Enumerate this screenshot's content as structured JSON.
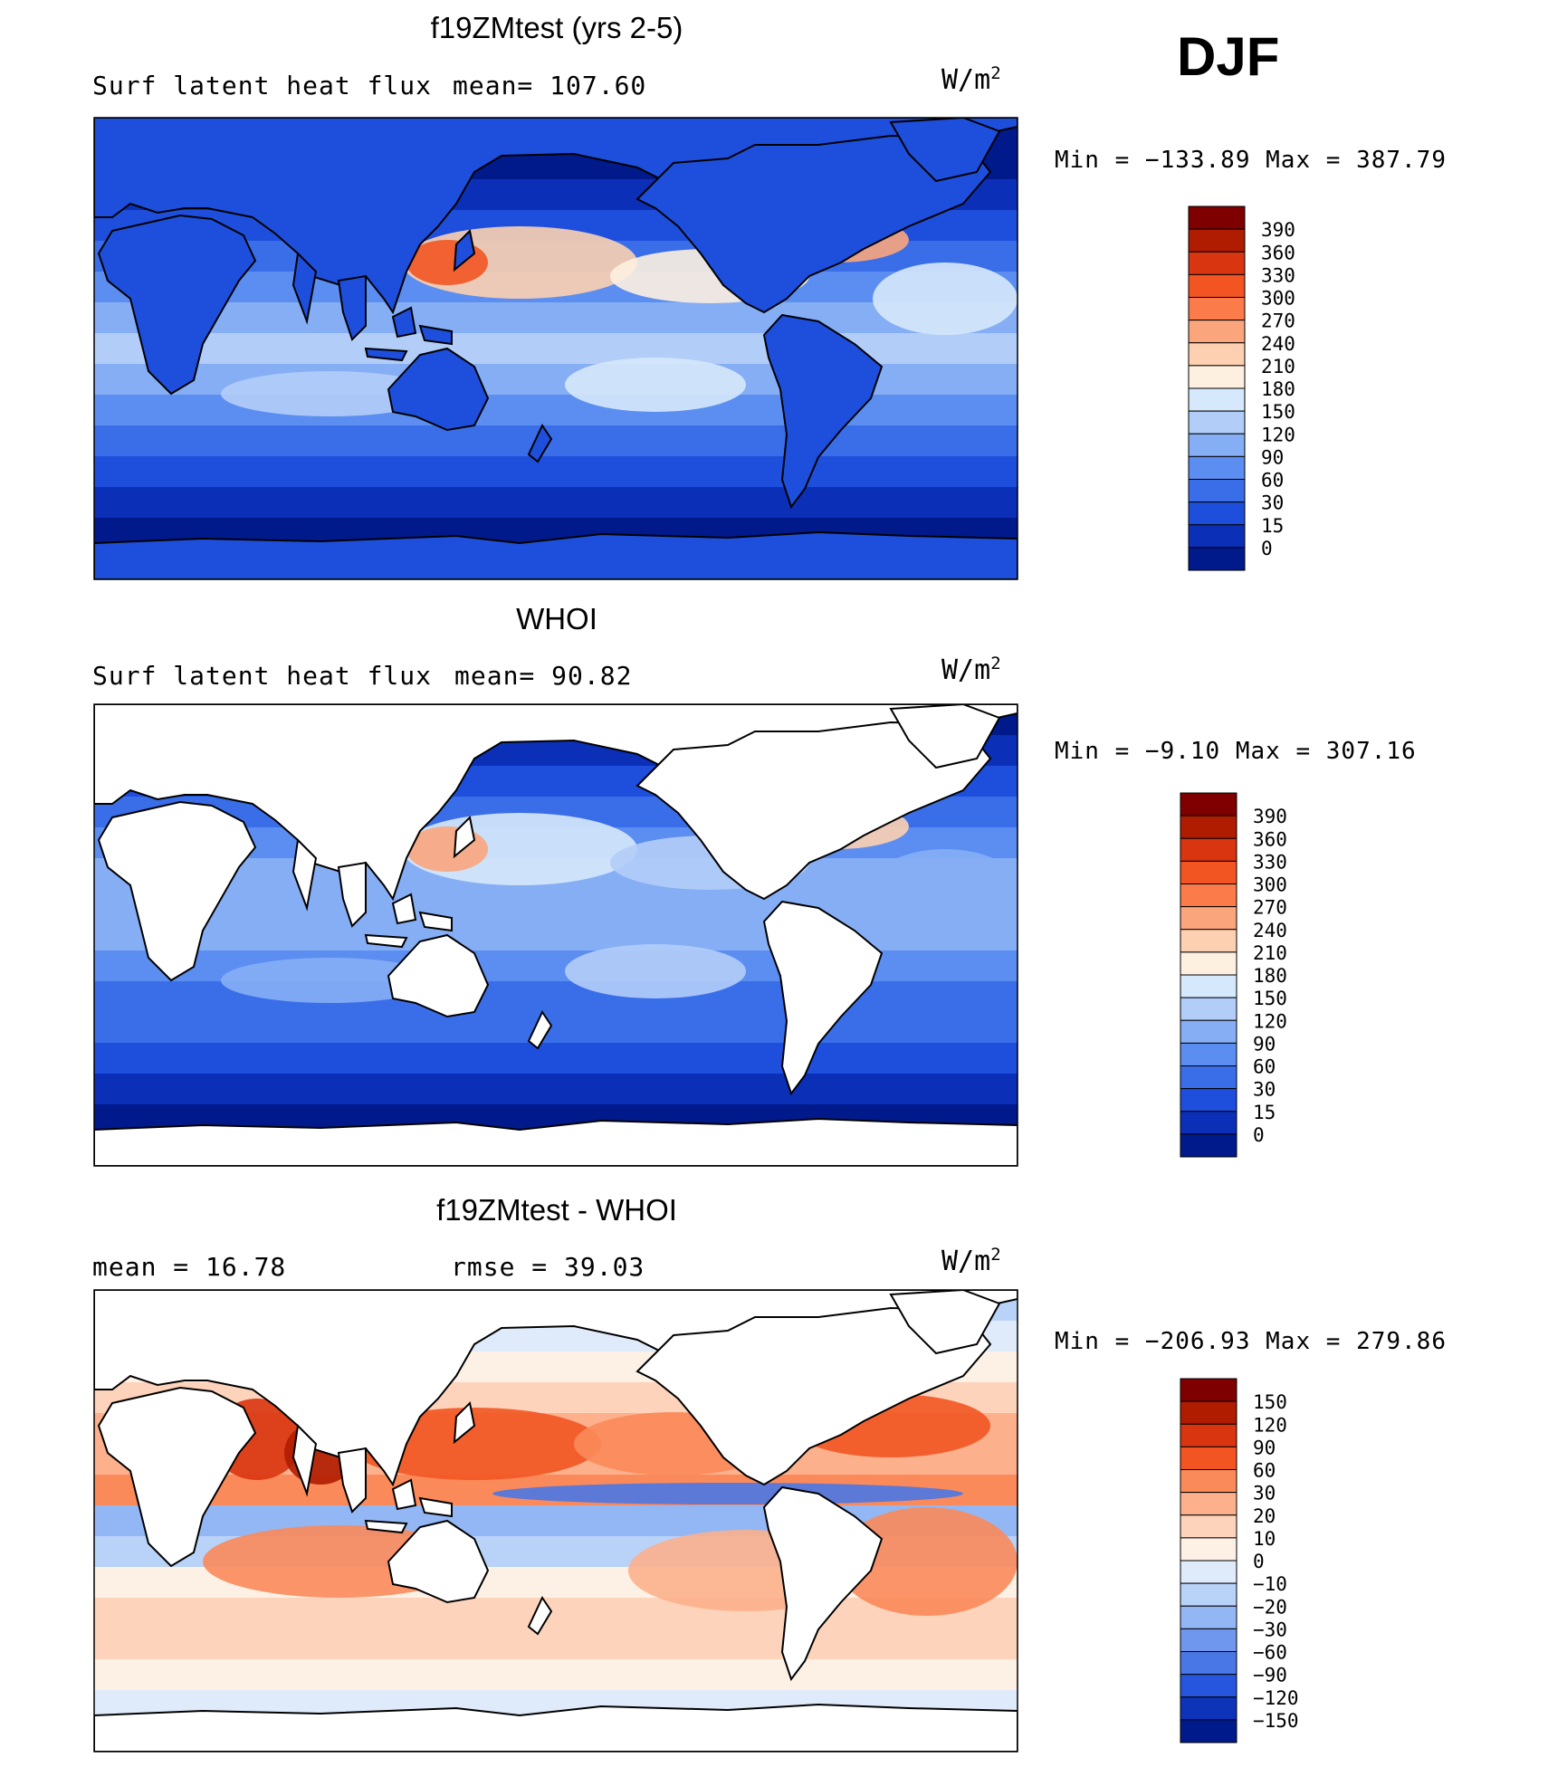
{
  "season": "DJF",
  "units_base": "W/m",
  "units_exp": "2",
  "panels": [
    {
      "title": "f19ZMtest (yrs 2-5)",
      "left_label": "Surf  latent  heat  flux",
      "mid_label": "mean=  107.60",
      "minmax": "Min  =  −133.89  Max  =  387.79",
      "colorbar_labels": [
        "390",
        "360",
        "330",
        "300",
        "270",
        "240",
        "210",
        "180",
        "150",
        "120",
        "90",
        "60",
        "30",
        "15",
        "0"
      ]
    },
    {
      "title": "WHOI",
      "left_label": "Surf  latent  heat  flux",
      "mid_label": "mean=   90.82",
      "minmax": "Min  =   −9.10  Max  =  307.16",
      "colorbar_labels": [
        "390",
        "360",
        "330",
        "300",
        "270",
        "240",
        "210",
        "180",
        "150",
        "120",
        "90",
        "60",
        "30",
        "15",
        "0"
      ]
    },
    {
      "title": "f19ZMtest - WHOI",
      "left_label": "mean  =    16.78",
      "mid_label": "rmse  =    39.03",
      "minmax": "Min  =  −206.93  Max  =  279.86",
      "colorbar_labels": [
        "150",
        "120",
        "90",
        "60",
        "30",
        "20",
        "10",
        "0",
        "−10",
        "−20",
        "−30",
        "−60",
        "−90",
        "−120",
        "−150"
      ]
    }
  ],
  "colors": {
    "abs_scale": [
      "#7f0000",
      "#b01c00",
      "#d93510",
      "#f25522",
      "#fb7c4a",
      "#fba57d",
      "#fcd0b0",
      "#fdf0e0",
      "#d6e8fb",
      "#b2cdf8",
      "#86aef5",
      "#5b8ef0",
      "#3a6ee8",
      "#1e4fdc",
      "#0c2fb8",
      "#001a8c"
    ],
    "diff_scale": [
      "#7f0000",
      "#b01c00",
      "#d93510",
      "#f25522",
      "#fb8a5a",
      "#fcb08c",
      "#fdd3bb",
      "#fdf0e4",
      "#dfeafb",
      "#b9d2f8",
      "#93b7f4",
      "#6f97ee",
      "#4a77e6",
      "#2556dd",
      "#0c33b8",
      "#001a8c"
    ],
    "land": "#ffffff",
    "coast": "#000000"
  },
  "chart_data": [
    {
      "type": "heatmap",
      "title": "f19ZMtest (yrs 2-5)",
      "subtitle": "Surf latent heat flux",
      "mean": 107.6,
      "min": -133.89,
      "max": 387.79,
      "units": "W/m2",
      "colorbar_levels": [
        390,
        360,
        330,
        300,
        270,
        240,
        210,
        180,
        150,
        120,
        90,
        60,
        30,
        15,
        0
      ]
    },
    {
      "type": "heatmap",
      "title": "WHOI",
      "subtitle": "Surf latent heat flux",
      "mean": 90.82,
      "min": -9.1,
      "max": 307.16,
      "units": "W/m2",
      "colorbar_levels": [
        390,
        360,
        330,
        300,
        270,
        240,
        210,
        180,
        150,
        120,
        90,
        60,
        30,
        15,
        0
      ]
    },
    {
      "type": "heatmap",
      "title": "f19ZMtest - WHOI",
      "mean": 16.78,
      "rmse": 39.03,
      "min": -206.93,
      "max": 279.86,
      "units": "W/m2",
      "colorbar_levels": [
        150,
        120,
        90,
        60,
        30,
        20,
        10,
        0,
        -10,
        -20,
        -30,
        -60,
        -90,
        -120,
        -150
      ]
    }
  ]
}
